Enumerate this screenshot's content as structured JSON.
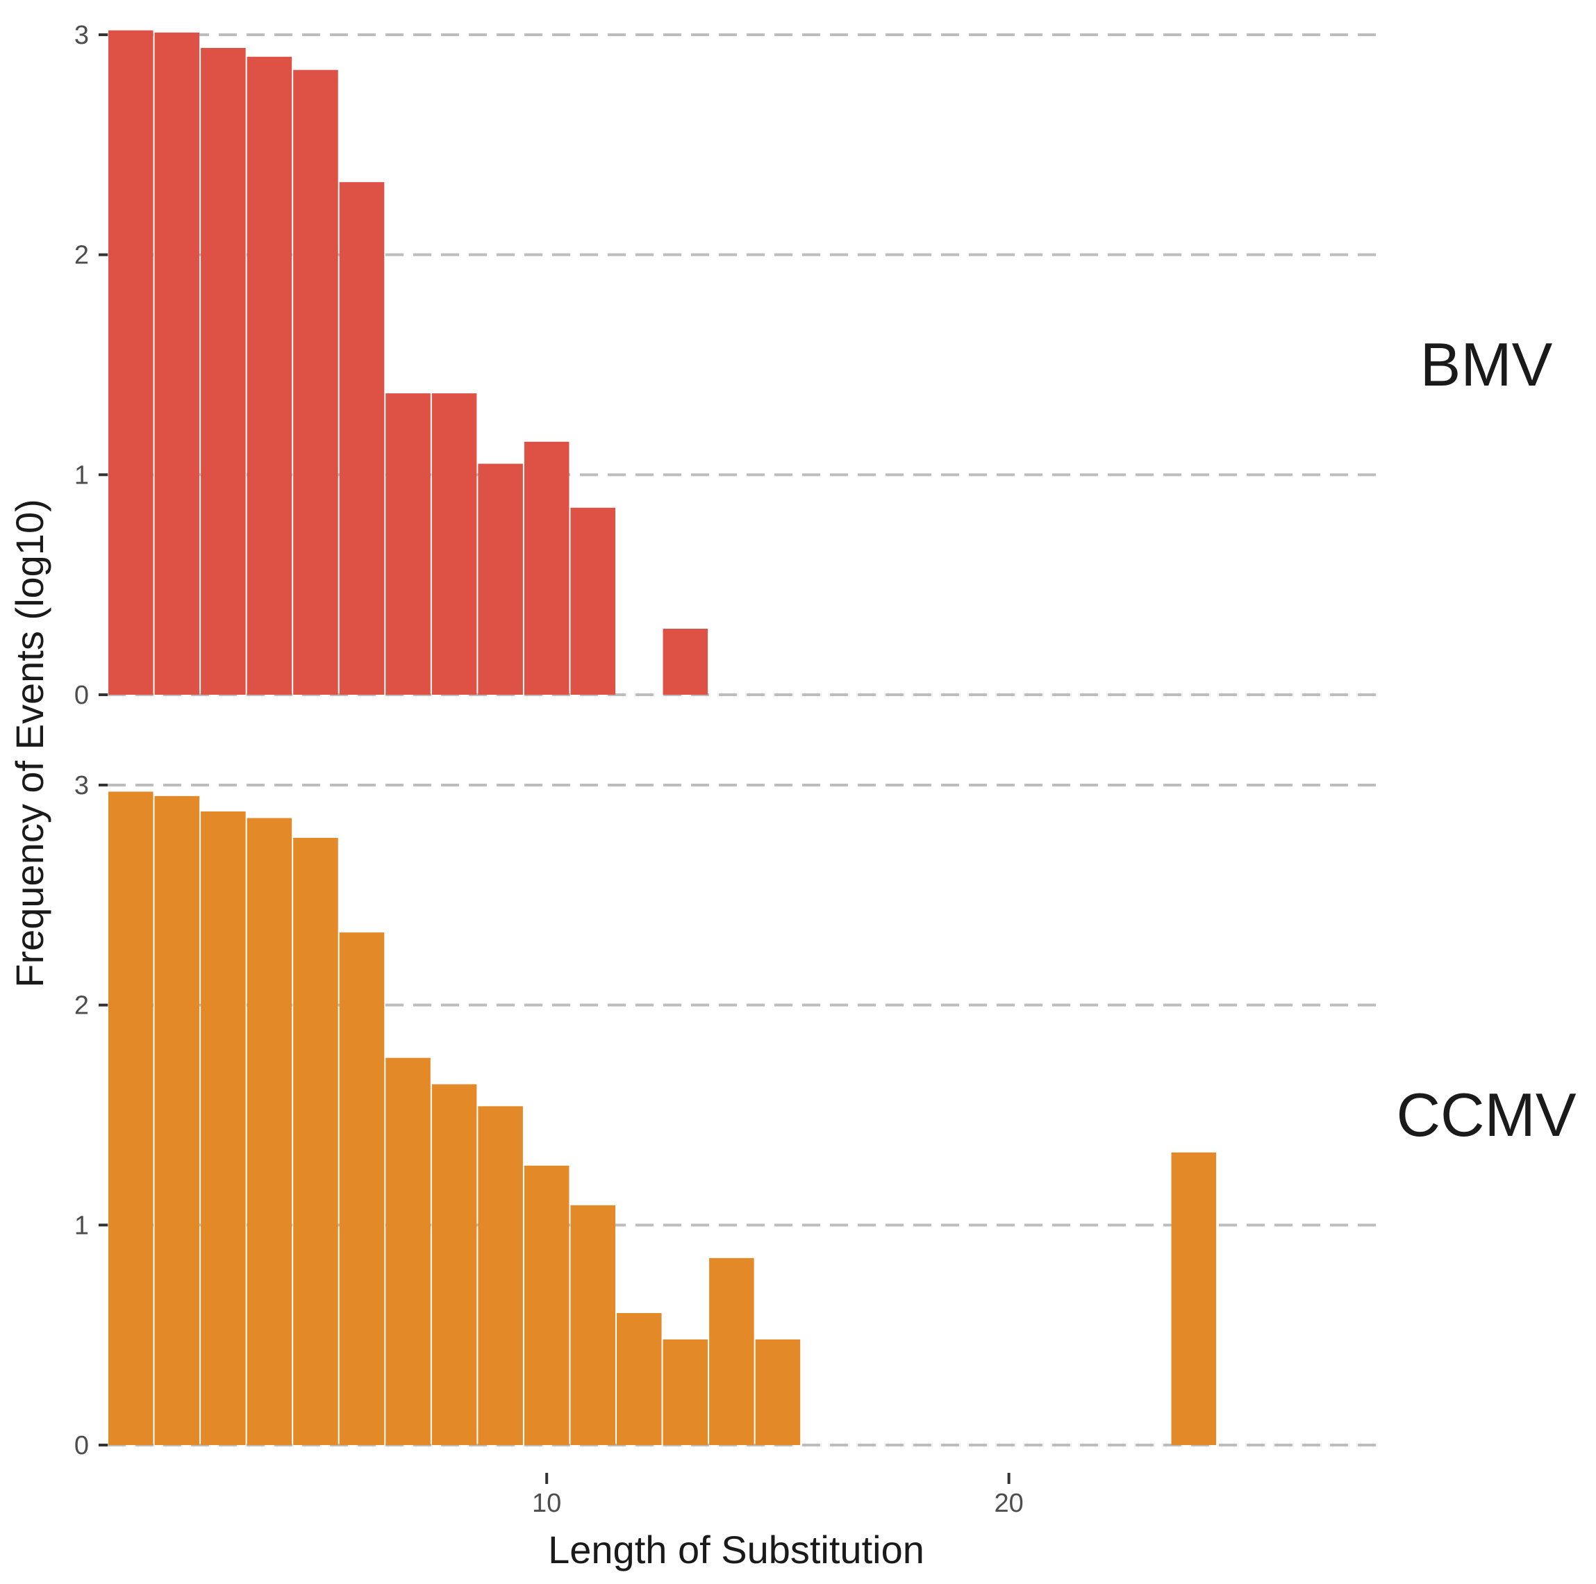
{
  "chart_data": {
    "type": "bar",
    "xlabel": "Length of Substitution",
    "ylabel": "Frequency of Events (log10)",
    "x_ticks": [
      10,
      20
    ],
    "y_ticks": [
      0,
      1,
      2,
      3
    ],
    "xlim": [
      0.5,
      28
    ],
    "ylim": [
      0,
      3
    ],
    "grid": "horizontal dashed",
    "panels": [
      {
        "label": "BMV",
        "color": "#DE5246",
        "x": [
          1,
          2,
          3,
          4,
          5,
          6,
          7,
          8,
          9,
          10,
          11,
          12,
          13,
          14
        ],
        "values": [
          3.02,
          3.01,
          2.94,
          2.9,
          2.84,
          2.33,
          1.37,
          1.37,
          1.05,
          1.15,
          0.85,
          0.0,
          0.3,
          0.0
        ]
      },
      {
        "label": "CCMV",
        "color": "#E38928",
        "x": [
          1,
          2,
          3,
          4,
          5,
          6,
          7,
          8,
          9,
          10,
          11,
          12,
          13,
          14,
          15,
          24
        ],
        "values": [
          2.97,
          2.95,
          2.88,
          2.85,
          2.76,
          2.33,
          1.76,
          1.64,
          1.54,
          1.27,
          1.09,
          0.6,
          0.48,
          0.85,
          0.48,
          1.33
        ]
      }
    ]
  }
}
